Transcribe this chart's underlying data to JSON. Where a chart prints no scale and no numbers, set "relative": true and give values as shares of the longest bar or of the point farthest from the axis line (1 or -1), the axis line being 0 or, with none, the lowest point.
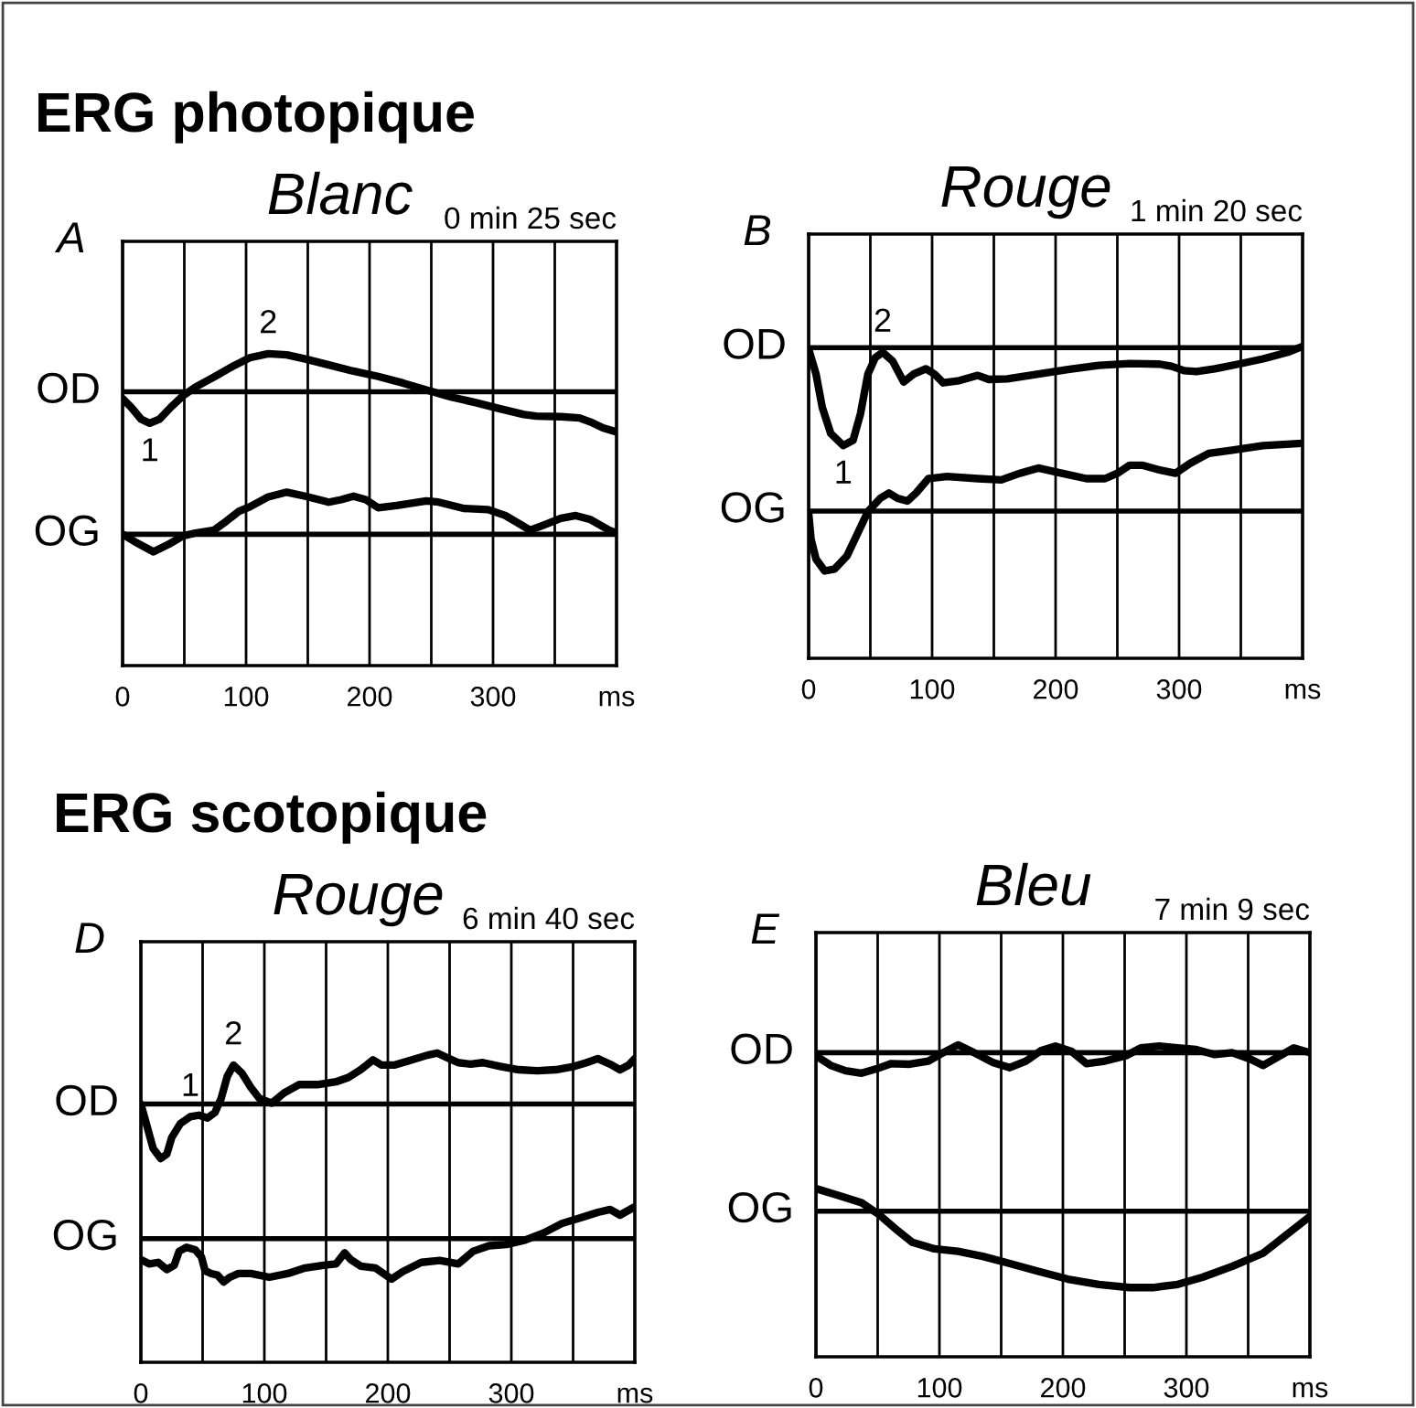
{
  "chart_data": [
    {
      "type": "line",
      "title": "Blanc",
      "subtitle": "0 min 25 sec",
      "xlabel": "ms",
      "relative": true,
      "grid": "x",
      "xlim": [
        0,
        400
      ],
      "xticks": [
        0,
        {
          "value": 50,
          "label": null
        },
        100,
        {
          "value": 150,
          "label": null
        },
        200,
        {
          "value": 250,
          "label": null
        },
        300,
        {
          "value": 350,
          "label": null
        }
      ],
      "ref_lines": [
        {
          "axis": "y",
          "value": 0.878,
          "label": "OD"
        },
        {
          "axis": "y",
          "value": 0.421,
          "label": "OG"
        }
      ],
      "annotations": [
        "ERG photopique",
        "A",
        {
          "text": "2",
          "x": 118,
          "y": 1.0
        },
        {
          "text": "1",
          "x": 22,
          "y": 0.777
        }
      ],
      "series": [
        {
          "color": "#000000",
          "x": [
            0,
            7,
            15,
            22,
            30,
            39,
            49,
            59,
            74,
            89,
            103,
            118,
            133,
            148,
            167,
            187,
            207,
            227,
            246,
            266,
            286,
            305,
            325,
            335,
            355,
            370,
            379,
            389,
            400
          ],
          "values": [
            0.856,
            0.828,
            0.79,
            0.777,
            0.79,
            0.828,
            0.865,
            0.893,
            0.925,
            0.959,
            0.987,
            1.0,
            0.996,
            0.983,
            0.964,
            0.944,
            0.927,
            0.906,
            0.884,
            0.861,
            0.843,
            0.824,
            0.805,
            0.8,
            0.798,
            0.794,
            0.781,
            0.762,
            0.749
          ]
        },
        {
          "color": "#000000",
          "x": [
            0,
            10,
            25,
            37,
            49,
            59,
            74,
            84,
            94,
            103,
            118,
            133,
            148,
            167,
            177,
            187,
            197,
            207,
            222,
            246,
            256,
            276,
            296,
            310,
            330,
            340,
            355,
            367,
            379,
            394,
            400
          ],
          "values": [
            0.421,
            0.397,
            0.365,
            0.388,
            0.416,
            0.425,
            0.434,
            0.463,
            0.494,
            0.509,
            0.541,
            0.556,
            0.543,
            0.524,
            0.532,
            0.543,
            0.532,
            0.506,
            0.513,
            0.528,
            0.524,
            0.504,
            0.5,
            0.481,
            0.434,
            0.449,
            0.472,
            0.481,
            0.468,
            0.434,
            0.425
          ]
        }
      ]
    },
    {
      "type": "line",
      "title": "Rouge",
      "subtitle": "1 min 20 sec",
      "xlabel": "ms",
      "relative": true,
      "grid": "x",
      "xlim": [
        0,
        400
      ],
      "xticks": [
        0,
        {
          "value": 50,
          "label": null
        },
        100,
        {
          "value": 150,
          "label": null
        },
        200,
        {
          "value": 250,
          "label": null
        },
        300,
        {
          "value": 350,
          "label": null
        }
      ],
      "ref_lines": [
        {
          "axis": "y",
          "value": 0.996,
          "label": "OD"
        },
        {
          "axis": "y",
          "value": 0.472,
          "label": "OG"
        }
      ],
      "annotations": [
        "B",
        {
          "text": "2",
          "x": 60,
          "y": 0.981
        },
        {
          "text": "1",
          "x": 28,
          "y": 0.682
        }
      ],
      "series": [
        {
          "color": "#000000",
          "x": [
            0,
            6,
            11,
            18,
            28,
            36,
            42,
            48,
            54,
            60,
            68,
            77,
            85,
            95,
            102,
            109,
            122,
            137,
            146,
            161,
            186,
            210,
            235,
            260,
            284,
            294,
            304,
            314,
            329,
            348,
            368,
            388,
            400
          ],
          "values": [
            0.992,
            0.911,
            0.805,
            0.72,
            0.682,
            0.699,
            0.784,
            0.911,
            0.964,
            0.981,
            0.953,
            0.886,
            0.911,
            0.928,
            0.911,
            0.883,
            0.89,
            0.907,
            0.894,
            0.896,
            0.911,
            0.926,
            0.939,
            0.945,
            0.943,
            0.936,
            0.922,
            0.919,
            0.928,
            0.943,
            0.96,
            0.981,
            1.0
          ]
        },
        {
          "color": "#000000",
          "x": [
            0,
            2,
            6,
            13,
            21,
            31,
            40,
            48,
            58,
            65,
            72,
            80,
            87,
            97,
            112,
            137,
            156,
            171,
            186,
            205,
            225,
            240,
            250,
            260,
            270,
            284,
            297,
            309,
            324,
            343,
            368,
            400
          ],
          "values": [
            0.466,
            0.381,
            0.318,
            0.28,
            0.286,
            0.328,
            0.403,
            0.47,
            0.513,
            0.53,
            0.513,
            0.504,
            0.53,
            0.576,
            0.583,
            0.576,
            0.572,
            0.593,
            0.61,
            0.593,
            0.576,
            0.576,
            0.593,
            0.619,
            0.619,
            0.604,
            0.593,
            0.625,
            0.657,
            0.667,
            0.682,
            0.689
          ]
        }
      ]
    },
    {
      "type": "line",
      "title": "Rouge",
      "subtitle": "6 min 40 sec",
      "xlabel": "ms",
      "relative": true,
      "grid": "x",
      "xlim": [
        0,
        400
      ],
      "xticks": [
        0,
        {
          "value": 50,
          "label": null
        },
        100,
        {
          "value": 150,
          "label": null
        },
        200,
        {
          "value": 250,
          "label": null
        },
        300,
        {
          "value": 350,
          "label": null
        }
      ],
      "ref_lines": [
        {
          "axis": "y",
          "value": 0.835,
          "label": "OD"
        },
        {
          "axis": "y",
          "value": 0.4,
          "label": "OG"
        }
      ],
      "annotations": [
        "ERG scotopique",
        "D",
        {
          "text": "2",
          "x": 75,
          "y": 0.961
        },
        {
          "text": "1",
          "x": 40,
          "y": 0.794
        }
      ],
      "series": [
        {
          "color": "#000000",
          "x": [
            0,
            5,
            10,
            16,
            21,
            25,
            32,
            40,
            47,
            54,
            60,
            65,
            70,
            75,
            82,
            89,
            96,
            106,
            116,
            128,
            143,
            158,
            168,
            178,
            188,
            195,
            205,
            217,
            232,
            240,
            247,
            257,
            267,
            277,
            291,
            306,
            321,
            336,
            351,
            361,
            370,
            380,
            388,
            395,
            400
          ],
          "values": [
            0.835,
            0.763,
            0.691,
            0.659,
            0.673,
            0.727,
            0.772,
            0.794,
            0.799,
            0.79,
            0.808,
            0.853,
            0.925,
            0.961,
            0.934,
            0.889,
            0.853,
            0.838,
            0.871,
            0.898,
            0.898,
            0.907,
            0.921,
            0.946,
            0.978,
            0.961,
            0.961,
            0.975,
            0.993,
            1.0,
            0.987,
            0.969,
            0.964,
            0.969,
            0.957,
            0.946,
            0.943,
            0.946,
            0.957,
            0.969,
            0.982,
            0.964,
            0.946,
            0.961,
            0.982
          ]
        },
        {
          "color": "#000000",
          "x": [
            0,
            7,
            14,
            21,
            27,
            31,
            37,
            44,
            49,
            52,
            57,
            62,
            67,
            72,
            79,
            89,
            104,
            119,
            133,
            148,
            158,
            165,
            170,
            178,
            190,
            203,
            212,
            227,
            242,
            257,
            269,
            282,
            296,
            311,
            326,
            341,
            356,
            370,
            380,
            388,
            400
          ],
          "values": [
            0.332,
            0.318,
            0.323,
            0.3,
            0.314,
            0.359,
            0.372,
            0.364,
            0.341,
            0.296,
            0.287,
            0.282,
            0.26,
            0.275,
            0.287,
            0.287,
            0.275,
            0.287,
            0.305,
            0.314,
            0.318,
            0.354,
            0.332,
            0.311,
            0.305,
            0.269,
            0.293,
            0.323,
            0.329,
            0.318,
            0.359,
            0.377,
            0.381,
            0.395,
            0.418,
            0.449,
            0.467,
            0.485,
            0.494,
            0.476,
            0.503
          ]
        }
      ]
    },
    {
      "type": "line",
      "title": "Bleu",
      "subtitle": "7 min 9 sec",
      "xlabel": "ms",
      "relative": true,
      "grid": "x",
      "xlim": [
        0,
        400
      ],
      "xticks": [
        0,
        {
          "value": 50,
          "label": null
        },
        100,
        {
          "value": 150,
          "label": null
        },
        200,
        {
          "value": 250,
          "label": null
        },
        300,
        {
          "value": 350,
          "label": null
        }
      ],
      "ref_lines": [
        {
          "axis": "y",
          "value": 0.975,
          "label": "OD"
        },
        {
          "axis": "y",
          "value": 0.467,
          "label": "OG"
        }
      ],
      "annotations": [
        "E"
      ],
      "series": [
        {
          "color": "#000000",
          "x": [
            0,
            12,
            24,
            37,
            49,
            61,
            76,
            91,
            103,
            115,
            128,
            143,
            157,
            170,
            182,
            194,
            207,
            219,
            234,
            251,
            263,
            278,
            293,
            308,
            323,
            337,
            352,
            362,
            374,
            387,
            400
          ],
          "values": [
            0.965,
            0.934,
            0.917,
            0.909,
            0.923,
            0.94,
            0.938,
            0.948,
            0.975,
            1.0,
            0.975,
            0.944,
            0.927,
            0.948,
            0.981,
            0.996,
            0.979,
            0.94,
            0.948,
            0.965,
            0.99,
            0.996,
            0.99,
            0.985,
            0.969,
            0.975,
            0.954,
            0.934,
            0.961,
            0.99,
            0.975
          ]
        },
        {
          "color": "#000000",
          "x": [
            0,
            17,
            37,
            51,
            66,
            78,
            96,
            115,
            135,
            155,
            180,
            204,
            229,
            254,
            273,
            293,
            313,
            337,
            362,
            382,
            400
          ],
          "values": [
            0.539,
            0.519,
            0.494,
            0.456,
            0.405,
            0.367,
            0.346,
            0.338,
            0.322,
            0.301,
            0.274,
            0.249,
            0.232,
            0.222,
            0.222,
            0.232,
            0.255,
            0.29,
            0.332,
            0.394,
            0.45
          ]
        }
      ]
    }
  ]
}
